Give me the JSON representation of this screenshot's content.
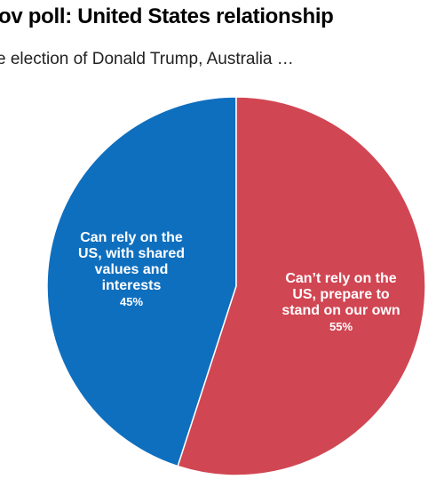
{
  "header": {
    "title": "ov poll: United States relationship",
    "subtitle": "e election of Donald Trump, Australia …"
  },
  "chart_data": {
    "type": "pie",
    "title": "ov poll: United States relationship",
    "subtitle": "e election of Donald Trump, Australia …",
    "legend": "none",
    "slices": [
      {
        "label_lines": [
          "Can rely on the",
          "US, with shared",
          "values and",
          "interests"
        ],
        "value": 45,
        "value_label": "45%",
        "color": "#0f6fbf"
      },
      {
        "label_lines": [
          "Can’t rely on the",
          "US, prepare to",
          "stand on our own"
        ],
        "value": 55,
        "value_label": "55%",
        "color": "#d14653"
      }
    ]
  },
  "colors": {
    "background": "#ffffff",
    "slice_border": "#ffffff",
    "label_text": "#ffffff"
  }
}
